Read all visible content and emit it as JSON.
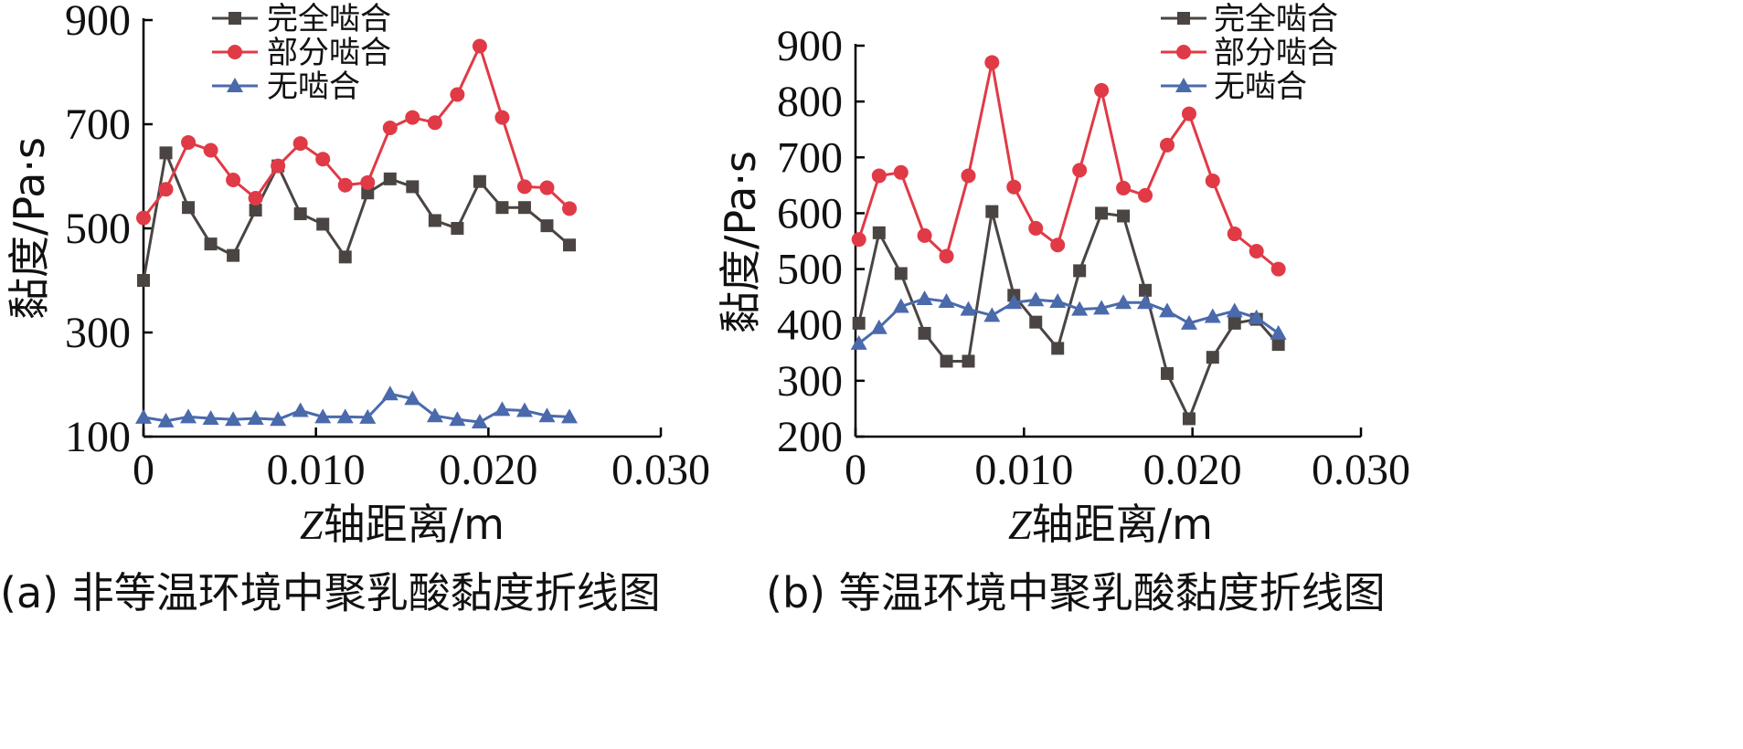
{
  "chart_data": [
    {
      "type": "line",
      "caption": "(a) 非等温环境中聚乳酸黏度折线图",
      "xlabel_italic": "Z",
      "xlabel": "轴距离/m",
      "ylabel": "黏度/Pa·s",
      "xlim": [
        0,
        0.03
      ],
      "ylim": [
        100,
        900
      ],
      "xticks": [
        0,
        0.01,
        0.02,
        0.03
      ],
      "xtick_labels": [
        "0",
        "0.010",
        "0.020",
        "0.030"
      ],
      "yticks": [
        100,
        300,
        500,
        700,
        900
      ],
      "ytick_labels": [
        "100",
        "300",
        "500",
        "700",
        "900"
      ],
      "legend_position": "top-center",
      "x": [
        0,
        0.0013,
        0.0026,
        0.0039,
        0.0052,
        0.0065,
        0.0078,
        0.0091,
        0.0104,
        0.0117,
        0.013,
        0.0143,
        0.0156,
        0.0169,
        0.0182,
        0.0195,
        0.0208,
        0.0221,
        0.0234,
        0.0247
      ],
      "series": [
        {
          "name": "完全啮合",
          "color": "#4a4543",
          "marker": "square",
          "values": [
            400,
            645,
            540,
            470,
            448,
            535,
            620,
            528,
            508,
            445,
            568,
            595,
            580,
            515,
            500,
            590,
            540,
            540,
            505,
            468
          ]
        },
        {
          "name": "部分啮合",
          "color": "#e03a46",
          "marker": "circle",
          "values": [
            520,
            575,
            665,
            650,
            593,
            558,
            620,
            663,
            633,
            583,
            588,
            693,
            713,
            703,
            757,
            850,
            713,
            580,
            578,
            538
          ]
        },
        {
          "name": "无啮合",
          "color": "#4a6aac",
          "marker": "triangle",
          "values": [
            137,
            130,
            138,
            135,
            133,
            135,
            133,
            150,
            138,
            138,
            137,
            182,
            173,
            140,
            133,
            128,
            152,
            150,
            140,
            138
          ]
        }
      ]
    },
    {
      "type": "line",
      "caption": "(b) 等温环境中聚乳酸黏度折线图",
      "xlabel_italic": "Z",
      "xlabel": "轴距离/m",
      "ylabel": "黏度/Pa·s",
      "xlim": [
        0,
        0.03
      ],
      "ylim": [
        200,
        900
      ],
      "xticks": [
        0,
        0.01,
        0.02,
        0.03
      ],
      "xtick_labels": [
        "0",
        "0.010",
        "0.020",
        "0.030"
      ],
      "yticks": [
        200,
        300,
        400,
        500,
        600,
        700,
        800,
        900
      ],
      "ytick_labels": [
        "200",
        "300",
        "400",
        "500",
        "600",
        "700",
        "800",
        "900"
      ],
      "legend_position": "top-right",
      "x": [
        0.0002,
        0.0014,
        0.0027,
        0.0041,
        0.0054,
        0.0067,
        0.0081,
        0.0094,
        0.0107,
        0.012,
        0.0133,
        0.0146,
        0.0159,
        0.0172,
        0.0185,
        0.0198,
        0.0212,
        0.0225,
        0.0238,
        0.0251
      ],
      "series": [
        {
          "name": "完全啮合",
          "color": "#4a4543",
          "marker": "square",
          "values": [
            403,
            565,
            492,
            385,
            335,
            335,
            603,
            453,
            405,
            358,
            497,
            600,
            595,
            462,
            313,
            232,
            342,
            403,
            410,
            365
          ]
        },
        {
          "name": "部分啮合",
          "color": "#e03a46",
          "marker": "circle",
          "values": [
            553,
            667,
            673,
            560,
            523,
            667,
            870,
            647,
            573,
            543,
            677,
            820,
            645,
            632,
            722,
            778,
            658,
            563,
            532,
            500
          ]
        },
        {
          "name": "无啮合",
          "color": "#4a6aac",
          "marker": "triangle",
          "values": [
            367,
            395,
            433,
            447,
            442,
            428,
            417,
            440,
            445,
            442,
            428,
            430,
            440,
            440,
            425,
            403,
            415,
            425,
            413,
            385
          ]
        }
      ]
    }
  ]
}
